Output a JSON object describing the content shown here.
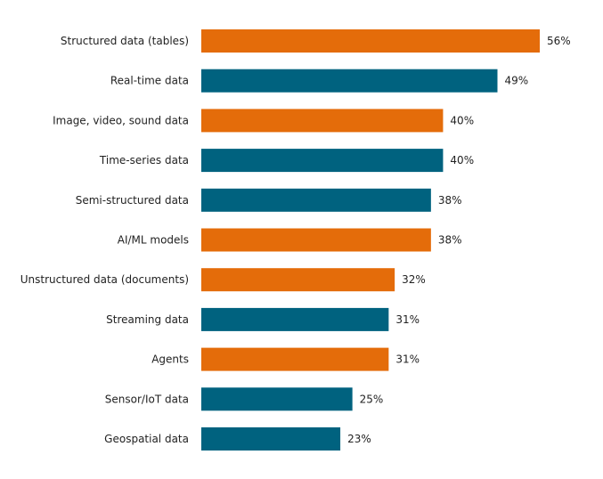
{
  "chart_data": {
    "type": "bar",
    "orientation": "horizontal",
    "title": "",
    "xlabel": "",
    "ylabel": "",
    "xlim": [
      0,
      56
    ],
    "grid": false,
    "value_suffix": "%",
    "categories": [
      "Structured data (tables)",
      "Real-time data",
      "Image, video, sound data",
      "Time-series data",
      "Semi-structured data",
      "AI/ML models",
      "Unstructured data (documents)",
      "Streaming data",
      "Agents",
      "Sensor/IoT data",
      "Geospatial data"
    ],
    "values": [
      56,
      49,
      40,
      40,
      38,
      38,
      32,
      31,
      31,
      25,
      23
    ],
    "labels": [
      "56%",
      "49%",
      "40%",
      "40%",
      "38%",
      "38%",
      "32%",
      "31%",
      "31%",
      "25%",
      "23%"
    ],
    "bar_colors": [
      "#E46C0A",
      "#00627F",
      "#E46C0A",
      "#00627F",
      "#00627F",
      "#E46C0A",
      "#E46C0A",
      "#00627F",
      "#E46C0A",
      "#00627F",
      "#00627F"
    ]
  }
}
